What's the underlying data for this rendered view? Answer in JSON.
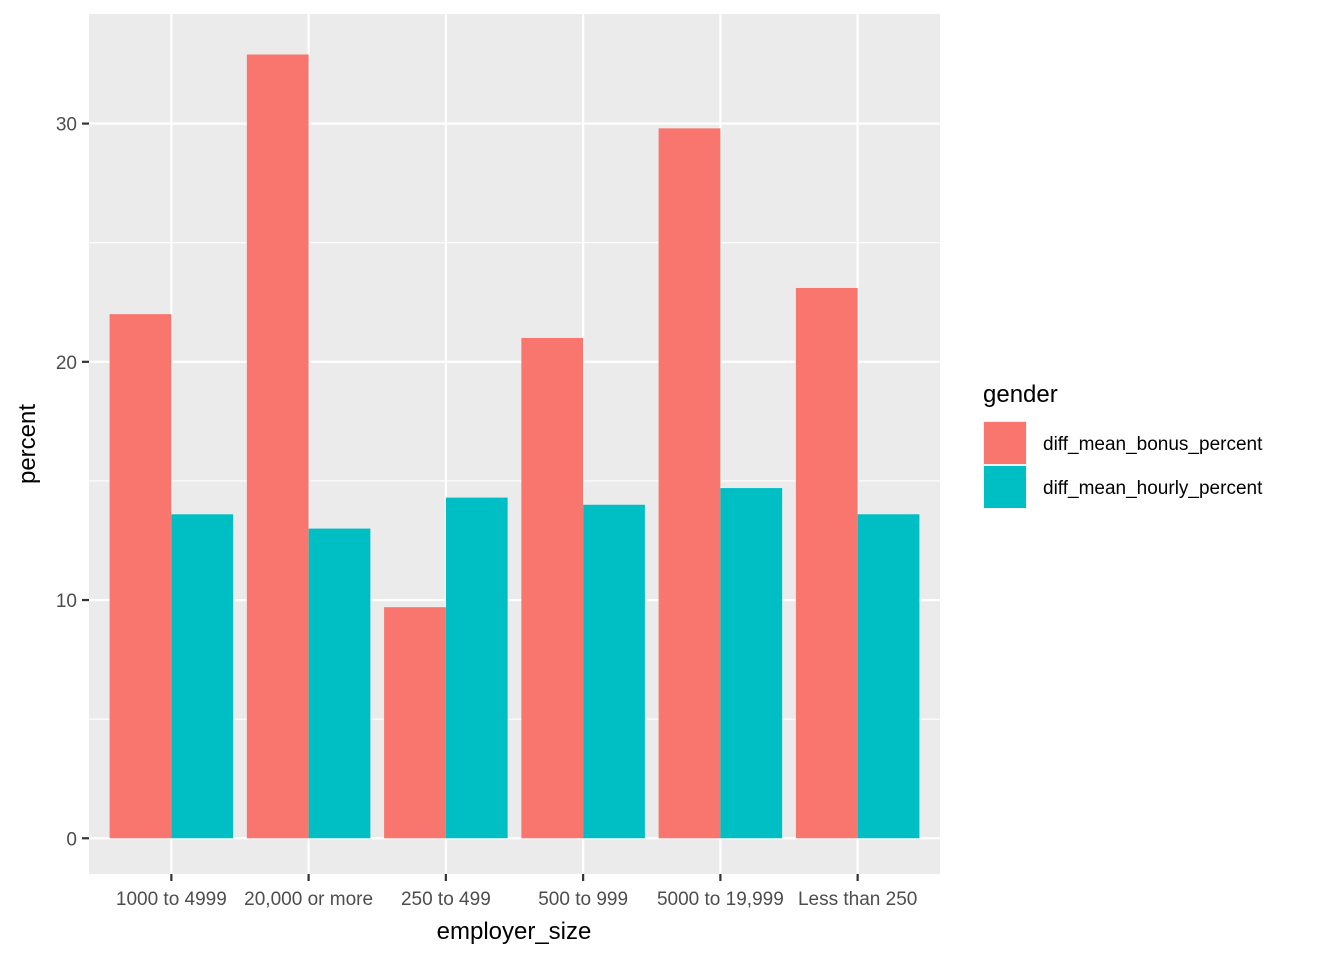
{
  "chart_data": {
    "type": "bar",
    "xlabel": "employer_size",
    "ylabel": "percent",
    "categories": [
      "1000 to 4999",
      "20,000 or more",
      "250 to 499",
      "500 to 999",
      "5000 to 19,999",
      "Less than 250"
    ],
    "series": [
      {
        "name": "diff_mean_bonus_percent",
        "color": "#F8766D",
        "values": [
          22.0,
          32.9,
          9.7,
          21.0,
          29.8,
          23.1
        ]
      },
      {
        "name": "diff_mean_hourly_percent",
        "color": "#00BFC4",
        "values": [
          13.6,
          13.0,
          14.3,
          14.0,
          14.7,
          13.6
        ]
      }
    ],
    "ylim": [
      -1.5,
      34.6
    ],
    "yticks": [
      0,
      10,
      20,
      30
    ],
    "y_minor_ticks": [
      5,
      15,
      25
    ],
    "grid": true,
    "legend": {
      "title": "gender",
      "placement": "right"
    }
  }
}
